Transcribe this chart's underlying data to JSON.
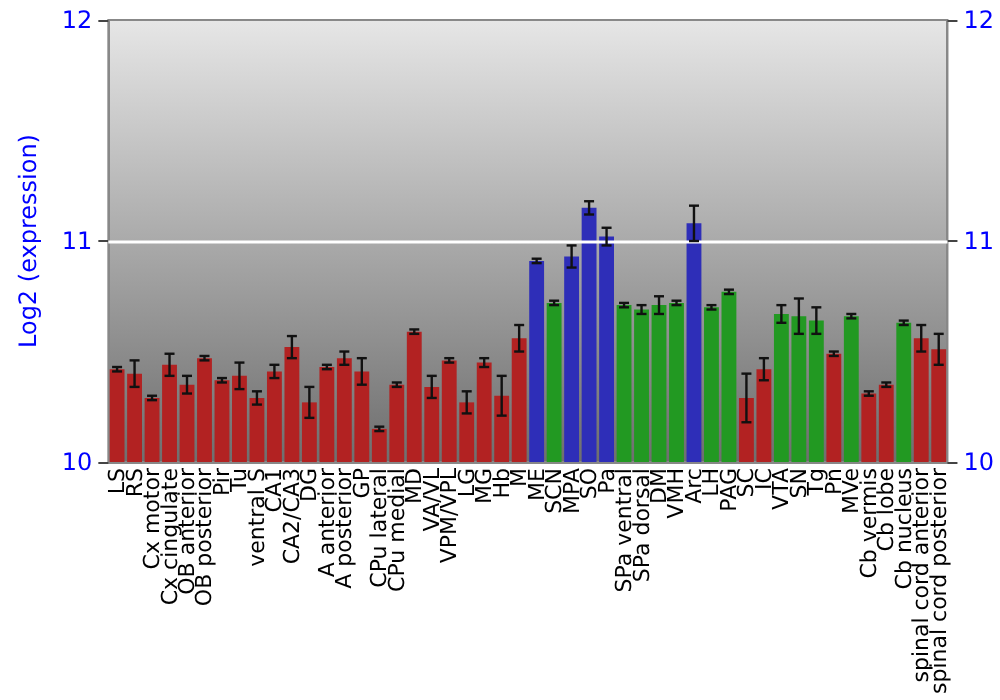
{
  "chart_data": {
    "type": "bar",
    "ylabel": "Log2 (expression)",
    "categories": [
      "LS",
      "RS",
      "Cx motor",
      "Cx cingulate",
      "OB anterior",
      "OB posterior",
      "Pir",
      "Tu",
      "ventral S",
      "CA1",
      "CA2/CA3",
      "DG",
      "A anterior",
      "A posterior",
      "GP",
      "CPu lateral",
      "CPu medial",
      "MD",
      "VA/VL",
      "VPM/VPL",
      "LG",
      "MG",
      "Hb",
      "M",
      "ME",
      "SCN",
      "MPA",
      "SO",
      "Pa",
      "SPa ventral",
      "SPa dorsal",
      "DM",
      "VMH",
      "Arc",
      "LH",
      "PAG",
      "SC",
      "IC",
      "VTA",
      "SN",
      "Tg",
      "Pn",
      "MVe",
      "Cb vermis",
      "Cb lobe",
      "Cb nucleus",
      "spinal cord anterior",
      "spinal cord posterior"
    ],
    "values": [
      10.42,
      10.4,
      10.29,
      10.44,
      10.35,
      10.47,
      10.37,
      10.39,
      10.29,
      10.41,
      10.52,
      10.27,
      10.43,
      10.47,
      10.41,
      10.15,
      10.35,
      10.59,
      10.34,
      10.46,
      10.27,
      10.45,
      10.3,
      10.56,
      10.91,
      10.72,
      10.93,
      11.15,
      11.02,
      10.71,
      10.69,
      10.71,
      10.72,
      11.08,
      10.7,
      10.77,
      10.29,
      10.42,
      10.67,
      10.66,
      10.64,
      10.49,
      10.66,
      10.31,
      10.35,
      10.63,
      10.56,
      10.51
    ],
    "errors": [
      0.01,
      0.06,
      0.01,
      0.05,
      0.04,
      0.01,
      0.01,
      0.06,
      0.03,
      0.03,
      0.05,
      0.07,
      0.01,
      0.03,
      0.06,
      0.01,
      0.01,
      0.01,
      0.05,
      0.01,
      0.05,
      0.02,
      0.09,
      0.06,
      0.01,
      0.01,
      0.05,
      0.03,
      0.04,
      0.01,
      0.02,
      0.04,
      0.01,
      0.08,
      0.01,
      0.01,
      0.11,
      0.05,
      0.04,
      0.08,
      0.06,
      0.01,
      0.01,
      0.01,
      0.01,
      0.01,
      0.06,
      0.07
    ],
    "colors": [
      "#b22222",
      "#b22222",
      "#b22222",
      "#b22222",
      "#b22222",
      "#b22222",
      "#b22222",
      "#b22222",
      "#b22222",
      "#b22222",
      "#b22222",
      "#b22222",
      "#b22222",
      "#b22222",
      "#b22222",
      "#b22222",
      "#b22222",
      "#b22222",
      "#b22222",
      "#b22222",
      "#b22222",
      "#b22222",
      "#b22222",
      "#b22222",
      "#2e2eb8",
      "#229922",
      "#2e2eb8",
      "#2e2eb8",
      "#2e2eb8",
      "#229922",
      "#229922",
      "#229922",
      "#229922",
      "#2e2eb8",
      "#229922",
      "#229922",
      "#b22222",
      "#b22222",
      "#229922",
      "#229922",
      "#229922",
      "#b22222",
      "#229922",
      "#b22222",
      "#b22222",
      "#229922",
      "#b22222",
      "#b22222"
    ],
    "ylim": [
      10,
      12
    ],
    "yticks": [
      10,
      11,
      12
    ],
    "y2lim": [
      10,
      12
    ],
    "y2ticks": [
      10,
      11,
      12
    ],
    "grid": "y"
  }
}
